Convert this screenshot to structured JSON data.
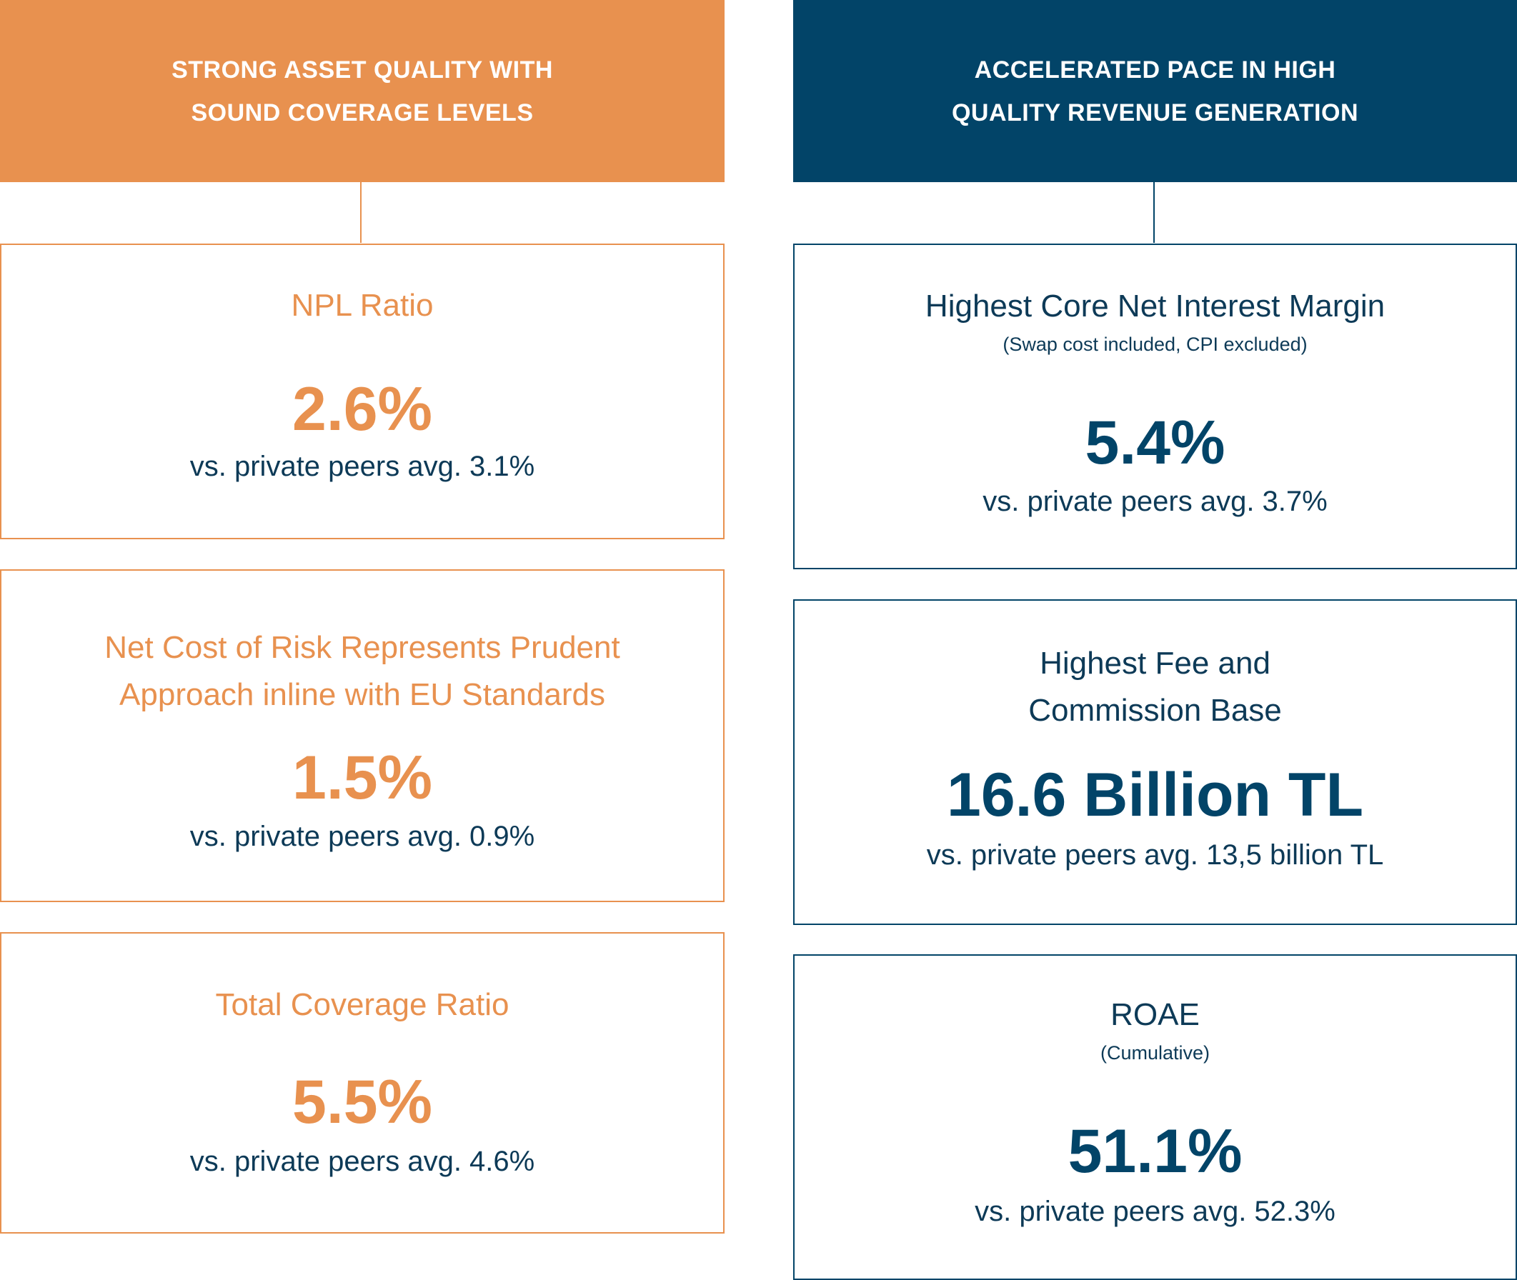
{
  "left": {
    "header": "STRONG ASSET QUALITY WITH\nSOUND COVERAGE LEVELS",
    "cards": [
      {
        "title": "NPL Ratio",
        "value": "2.6%",
        "compare": "vs. private peers avg. 3.1%"
      },
      {
        "title": "Net Cost of Risk Represents Prudent\nApproach inline with EU Standards",
        "value": "1.5%",
        "compare": "vs. private peers avg. 0.9%"
      },
      {
        "title": "Total Coverage Ratio",
        "value": "5.5%",
        "compare": "vs. private peers avg. 4.6%"
      }
    ]
  },
  "right": {
    "header": "ACCELERATED PACE IN HIGH\nQUALITY REVENUE GENERATION",
    "cards": [
      {
        "title": "Highest Core Net Interest Margin",
        "subtitle": "(Swap cost included, CPI excluded)",
        "value": "5.4%",
        "compare": "vs. private peers avg. 3.7%"
      },
      {
        "title": "Highest Fee and\nCommission Base",
        "value": "16.6 Billion TL",
        "compare": "vs. private peers avg. 13,5 billion TL"
      },
      {
        "title": "ROAE",
        "subtitle": "(Cumulative)",
        "value": "51.1%",
        "compare": "vs. private peers avg. 52.3%"
      }
    ]
  },
  "colors": {
    "orange": "#e8914f",
    "navy": "#024468"
  }
}
